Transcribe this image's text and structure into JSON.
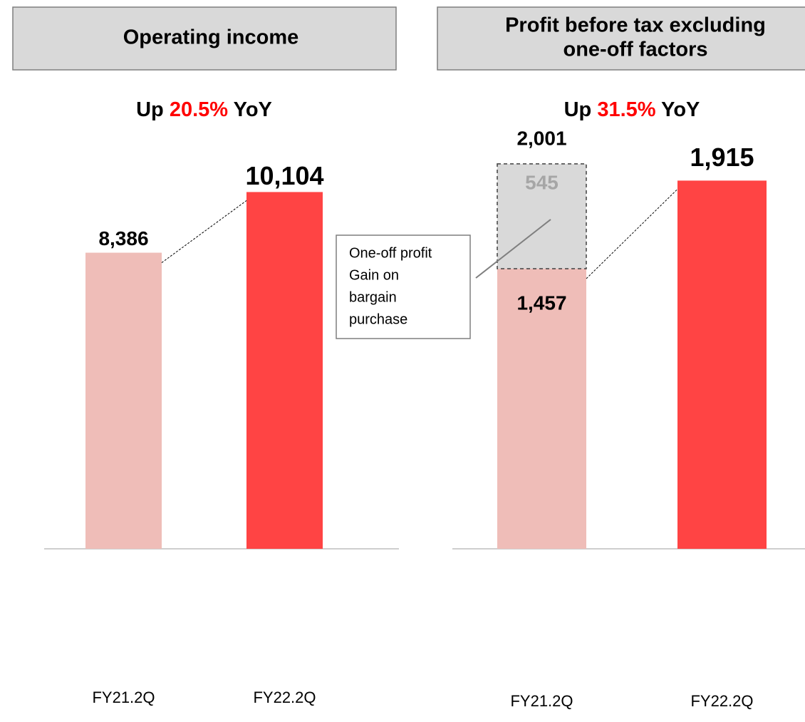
{
  "chart_data": [
    {
      "type": "bar",
      "title": [
        "Operating income"
      ],
      "subtitle": [
        "Up",
        "20.5%",
        "YoY"
      ],
      "categories": [
        "FY21.2Q",
        "FY22.2Q"
      ],
      "values": [
        8386,
        10104
      ],
      "value_labels": [
        "8,386",
        "10,104"
      ],
      "colors": [
        "#efbdb8",
        "#ff4444"
      ],
      "ylim": [
        0,
        10900
      ]
    },
    {
      "type": "stacked_bar",
      "title": [
        "Profit before tax excluding",
        "one-off factors"
      ],
      "subtitle": [
        "Up",
        "31.5%",
        "YoY"
      ],
      "categories": [
        "FY21.2Q",
        "FY22.2Q"
      ],
      "series": [
        {
          "colors": [
            "#efbdb8",
            "#ff4444"
          ],
          "values": [
            1457,
            1915
          ],
          "value_labels": [
            "1,457",
            "1,915"
          ]
        },
        {
          "name": [
            "One-off profit",
            "Gain on",
            "bargain",
            "purchase"
          ],
          "color": "#d9d9d9",
          "values": [
            545,
            null
          ]
        }
      ],
      "totals": [
        2001,
        null
      ],
      "total_labels": [
        "2,001",
        null
      ],
      "ylim": [
        0,
        2150
      ]
    }
  ]
}
